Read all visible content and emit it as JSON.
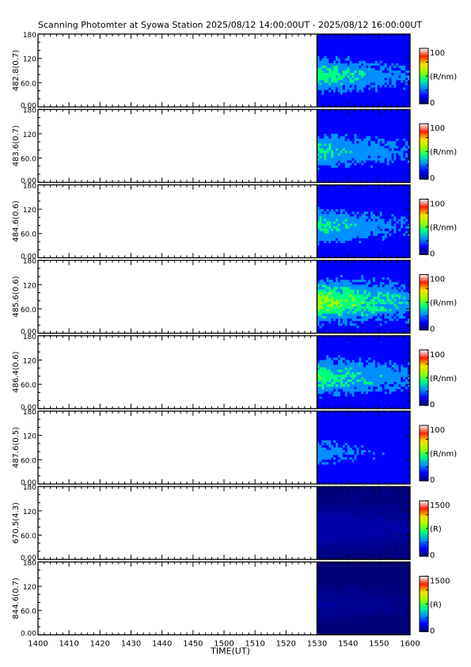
{
  "title": "Scanning Photomter at Syowa Station 2025/08/12 14:00:00UT - 2025/08/12 16:00:00UT",
  "colors": {
    "axis": "#000000",
    "background": "#ffffff",
    "colormap": [
      "#00007a",
      "#0000ff",
      "#0090ff",
      "#00ff80",
      "#9aff00",
      "#ffe000",
      "#ff2000",
      "#ffffff"
    ]
  },
  "chart_data": {
    "type": "heatmap",
    "xlabel": "TIME(UT)",
    "x_tick_labels": [
      "1400",
      "1410",
      "1420",
      "1430",
      "1440",
      "1450",
      "1500",
      "1510",
      "1520",
      "1530",
      "1540",
      "1550",
      "1600"
    ],
    "xlim": [
      "14:00",
      "16:00"
    ],
    "data_start": "15:30",
    "ylim": [
      0,
      180
    ],
    "y_tick_labels": [
      "0.00",
      "60.0",
      "120",
      "180"
    ],
    "panels": [
      {
        "ylabel": "482.8(0.7)",
        "colorbar_max": "100",
        "colorbar_min": "0",
        "unit": "(R/nm)",
        "intensity": 0.42
      },
      {
        "ylabel": "483.6(0.7)",
        "colorbar_max": "100",
        "colorbar_min": "0",
        "unit": "(R/nm)",
        "intensity": 0.4
      },
      {
        "ylabel": "484.6(0.6)",
        "colorbar_max": "100",
        "colorbar_min": "0",
        "unit": "(R/nm)",
        "intensity": 0.4
      },
      {
        "ylabel": "485.6(0.6)",
        "colorbar_max": "100",
        "colorbar_min": "0",
        "unit": "(R/nm)",
        "intensity": 0.55
      },
      {
        "ylabel": "486.4(0.6)",
        "colorbar_max": "100",
        "colorbar_min": "0",
        "unit": "(R/nm)",
        "intensity": 0.45
      },
      {
        "ylabel": "487.6(0.5)",
        "colorbar_max": "100",
        "colorbar_min": "0",
        "unit": "(R/nm)",
        "intensity": 0.3
      },
      {
        "ylabel": "670.5(4.3)",
        "colorbar_max": "1500",
        "colorbar_min": "0",
        "unit": "(R)",
        "intensity": 0.1
      },
      {
        "ylabel": "844.6(0.7)",
        "colorbar_max": "1500",
        "colorbar_min": "0",
        "unit": "(R)",
        "intensity": 0.06
      }
    ]
  }
}
